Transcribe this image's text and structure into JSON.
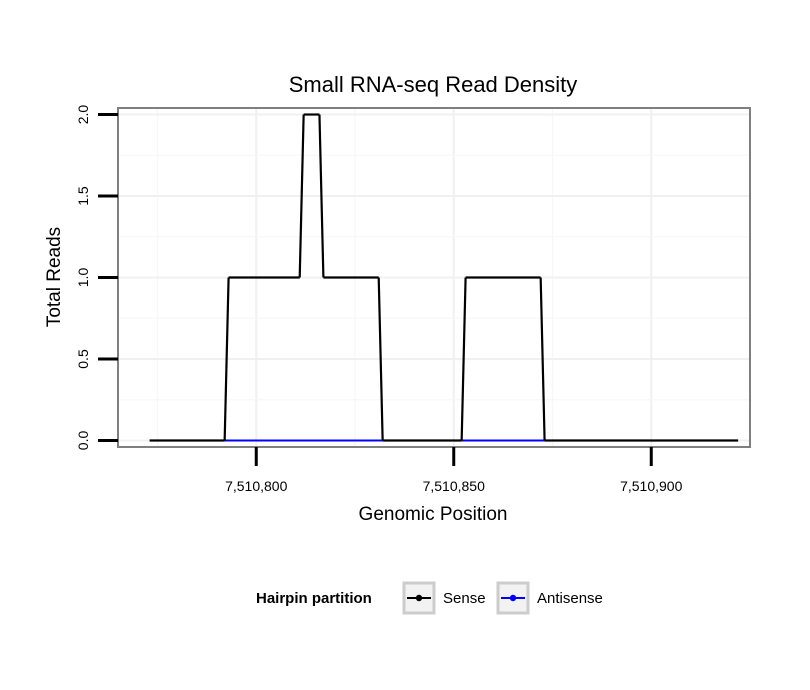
{
  "chart_data": {
    "type": "line",
    "title": "Small RNA-seq Read Density",
    "xlabel": "Genomic Position",
    "ylabel": "Total Reads",
    "xlim": [
      7510765,
      7510925
    ],
    "ylim": [
      -0.04,
      2.04
    ],
    "x_ticks": [
      {
        "value": 7510800,
        "label": "7,510,800"
      },
      {
        "value": 7510850,
        "label": "7,510,850"
      },
      {
        "value": 7510900,
        "label": "7,510,900"
      }
    ],
    "y_ticks": [
      {
        "value": 0,
        "label": "0.0"
      },
      {
        "value": 0.5,
        "label": "0.5"
      },
      {
        "value": 1,
        "label": "1.0"
      },
      {
        "value": 1.5,
        "label": "1.5"
      },
      {
        "value": 2,
        "label": "2.0"
      }
    ],
    "grid": true,
    "legend_position": "bottom",
    "legend_title": "Hairpin partition",
    "series": [
      {
        "name": "Sense",
        "color": "#000000",
        "x": [
          7510773,
          7510792,
          7510793,
          7510811,
          7510812,
          7510816,
          7510817,
          7510831,
          7510832,
          7510852,
          7510853,
          7510872,
          7510873,
          7510922
        ],
        "y": [
          0,
          0,
          1,
          1,
          2,
          2,
          1,
          1,
          0,
          0,
          1,
          1,
          0,
          0
        ]
      },
      {
        "name": "Antisense",
        "color": "#0000ff",
        "x": [
          7510792,
          7510832
        ],
        "y": [
          0,
          0
        ],
        "x2": [
          7510852,
          7510873
        ],
        "y2": [
          0,
          0
        ]
      }
    ]
  }
}
